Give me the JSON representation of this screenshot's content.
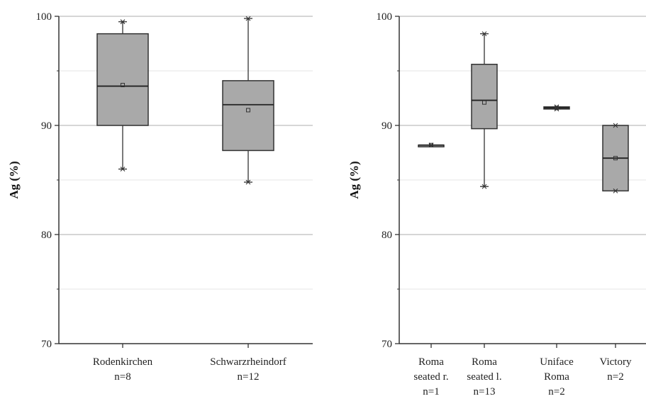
{
  "chart_data": [
    {
      "type": "box",
      "ylabel": "Ag (%)",
      "ylim": [
        70,
        100
      ],
      "yticks": [
        70,
        80,
        90,
        100
      ],
      "grid": "horizontal",
      "categories": [
        {
          "label": [
            "Rodenkirchen",
            "n=8"
          ],
          "min": 86,
          "q1": 90,
          "median": 93.6,
          "mean": 93.7,
          "q3": 98.4,
          "max": 99.5
        },
        {
          "label": [
            "Schwarzrheindorf",
            "n=12"
          ],
          "min": 84.8,
          "q1": 87.7,
          "median": 91.9,
          "mean": 91.4,
          "q3": 94.1,
          "max": 99.8
        }
      ]
    },
    {
      "type": "box",
      "ylabel": "Ag (%)",
      "ylim": [
        70,
        100
      ],
      "yticks": [
        70,
        80,
        90,
        100
      ],
      "grid": "horizontal",
      "categories": [
        {
          "label": [
            "Roma",
            "seated r.",
            "n=1"
          ],
          "min": 88.2,
          "q1": 88.2,
          "median": 88.2,
          "mean": 88.2,
          "q3": 88.2,
          "max": 88.2
        },
        {
          "label": [
            "Roma",
            "seated l.",
            "n=13"
          ],
          "min": 84.4,
          "q1": 89.7,
          "median": 92.3,
          "mean": 92.1,
          "q3": 95.6,
          "max": 98.4
        },
        {
          "label": [
            "Uniface",
            "Roma",
            "n=2"
          ],
          "min": 91.5,
          "q1": 91.5,
          "median": 91.6,
          "mean": 91.6,
          "q3": 91.7,
          "max": 91.7
        },
        {
          "label": [
            "Victory",
            "n=2"
          ],
          "min": 84,
          "q1": 84,
          "median": 87,
          "mean": 87,
          "q3": 90,
          "max": 90
        }
      ]
    }
  ]
}
